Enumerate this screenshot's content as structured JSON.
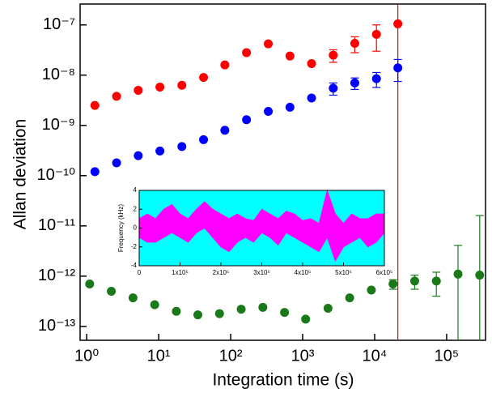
{
  "chart_data": [
    {
      "type": "scatter",
      "xlabel": "Integration time (s)",
      "ylabel": "Allan deviation",
      "xscale": "log",
      "yscale": "log",
      "xlim": [
        0.81,
        347000
      ],
      "ylim": [
        5.3e-14,
        2.6e-07
      ],
      "xticks": [
        {
          "value": 1,
          "label": "10⁰"
        },
        {
          "value": 10,
          "label": "10¹"
        },
        {
          "value": 100,
          "label": "10²"
        },
        {
          "value": 1000,
          "label": "10³"
        },
        {
          "value": 10000,
          "label": "10⁴"
        },
        {
          "value": 100000,
          "label": "10⁵"
        }
      ],
      "yticks": [
        {
          "value": 1e-13,
          "label": "10⁻¹³"
        },
        {
          "value": 1e-12,
          "label": "10⁻¹²"
        },
        {
          "value": 1e-11,
          "label": "10⁻¹¹"
        },
        {
          "value": 1e-10,
          "label": "10⁻¹⁰"
        },
        {
          "value": 1e-09,
          "label": "10⁻⁹"
        },
        {
          "value": 1e-08,
          "label": "10⁻⁸"
        },
        {
          "value": 1e-07,
          "label": "10⁻⁷"
        }
      ],
      "series": [
        {
          "color": "#ff0000",
          "x": [
            1.3,
            2.6,
            5.2,
            10.4,
            21,
            42,
            83,
            166,
            333,
            666,
            1330,
            2660,
            5300,
            10600,
            21000
          ],
          "values": [
            2.5e-09,
            3.8e-09,
            5e-09,
            5.8e-09,
            6.3e-09,
            9e-09,
            1.6e-08,
            2.8e-08,
            4.2e-08,
            2.4e-08,
            1.7e-08,
            2.5e-08,
            4.3e-08,
            6.5e-08,
            1.05e-07
          ],
          "errors": [
            null,
            null,
            null,
            null,
            null,
            null,
            null,
            null,
            null,
            null,
            null,
            7e-09,
            1.5e-08,
            3.5e-08,
            2e-07
          ]
        },
        {
          "color": "#0000ff",
          "x": [
            1.3,
            2.6,
            5.2,
            10.4,
            21,
            42,
            83,
            166,
            333,
            666,
            1330,
            2660,
            5300,
            10600,
            21000
          ],
          "values": [
            1.2e-10,
            1.8e-10,
            2.5e-10,
            3.1e-10,
            3.8e-10,
            5.2e-10,
            8e-10,
            1.3e-09,
            1.9e-09,
            2.3e-09,
            3.5e-09,
            5.5e-09,
            7e-09,
            8.5e-09,
            1.4e-08
          ],
          "errors": [
            null,
            null,
            null,
            null,
            null,
            null,
            null,
            null,
            null,
            null,
            null,
            1.5e-09,
            1.8e-09,
            2.8e-09,
            6.5e-09
          ]
        },
        {
          "color": "#1a7a1a",
          "x": [
            1.1,
            2.2,
            4.4,
            8.8,
            17.6,
            35,
            70,
            140,
            280,
            560,
            1100,
            2250,
            4500,
            9000,
            18000,
            36000,
            72000,
            144000,
            288000
          ],
          "values": [
            7e-13,
            5e-13,
            3.7e-13,
            2.7e-13,
            2e-13,
            1.7e-13,
            1.8e-13,
            2.2e-13,
            2.4e-13,
            1.9e-13,
            1.4e-13,
            2.3e-13,
            3.7e-13,
            5.3e-13,
            7e-13,
            8e-13,
            8e-13,
            1.1e-12,
            1.05e-12
          ],
          "errors": [
            null,
            null,
            null,
            null,
            null,
            null,
            null,
            null,
            null,
            null,
            null,
            null,
            null,
            null,
            1.5e-13,
            2.5e-13,
            4e-13,
            3e-12,
            1.5e-11
          ]
        }
      ]
    },
    {
      "type": "band",
      "ylabel": "Frequency (kHz)",
      "xlim": [
        0,
        600000
      ],
      "ylim": [
        -4,
        4
      ],
      "xticks": [
        0,
        {
          "value": 100000,
          "label": "1x10⁵"
        },
        {
          "value": 200000,
          "label": "2x10⁵"
        },
        {
          "value": 300000,
          "label": "3x10⁵"
        },
        {
          "value": 400000,
          "label": "4x10⁵"
        },
        {
          "value": 500000,
          "label": "5x10⁵"
        },
        {
          "value": 600000,
          "label": "6x10⁵"
        }
      ],
      "yticks": [
        -4,
        -2,
        0,
        2,
        4
      ],
      "background": "#00ffff",
      "color": "#ff00ff",
      "x": [
        0,
        20000,
        40000,
        60000,
        80000,
        100000,
        120000,
        140000,
        160000,
        180000,
        200000,
        220000,
        240000,
        260000,
        280000,
        300000,
        320000,
        340000,
        360000,
        380000,
        400000,
        420000,
        440000,
        460000,
        480000,
        500000,
        520000,
        540000,
        560000,
        580000,
        600000
      ],
      "upper": [
        1,
        1.5,
        1,
        2,
        2.5,
        1.5,
        1,
        2,
        2.8,
        2,
        1.5,
        1,
        1.5,
        1,
        0.8,
        2,
        1.5,
        1,
        1.8,
        1.5,
        0.8,
        1,
        0.5,
        4,
        1.5,
        0.5,
        1.5,
        1,
        1,
        1.5,
        1.5
      ],
      "lower": [
        -1,
        -1.5,
        -1.5,
        -1,
        -0.5,
        -1,
        -1.5,
        -0.5,
        0,
        -1,
        -2,
        -2.5,
        -1.5,
        -1,
        -1.5,
        -0.5,
        -1,
        -1.8,
        -0.5,
        -1,
        -1.5,
        -2,
        -2.5,
        -1,
        -3.5,
        -2,
        -1.5,
        -1,
        -2,
        -1.5,
        -0.5
      ]
    }
  ]
}
